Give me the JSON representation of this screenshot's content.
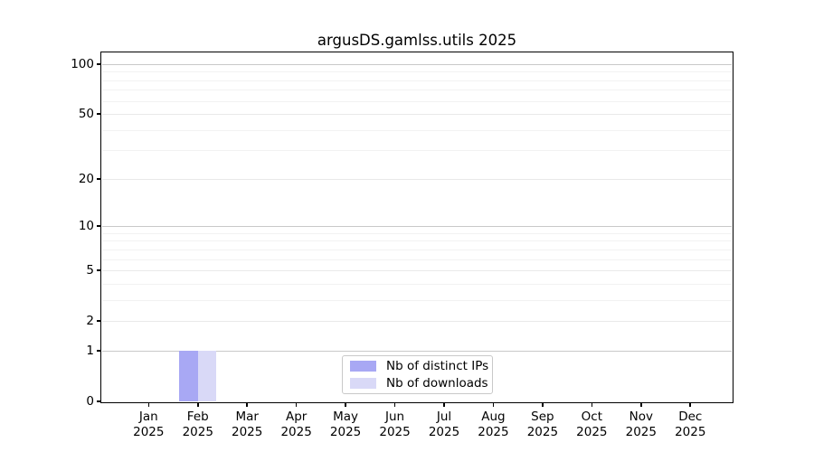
{
  "chart_data": {
    "type": "bar",
    "title": "argusDS.gamlss.utils 2025",
    "categories": [
      "Jan 2025",
      "Feb 2025",
      "Mar 2025",
      "Apr 2025",
      "May 2025",
      "Jun 2025",
      "Jul 2025",
      "Aug 2025",
      "Sep 2025",
      "Oct 2025",
      "Nov 2025",
      "Dec 2025"
    ],
    "series": [
      {
        "name": "Nb of distinct IPs",
        "color": "#a8a8f4",
        "values": [
          0,
          1,
          0,
          0,
          0,
          0,
          0,
          0,
          0,
          0,
          0,
          0
        ]
      },
      {
        "name": "Nb of downloads",
        "color": "#d9d9f7",
        "values": [
          0,
          1,
          0,
          0,
          0,
          0,
          0,
          0,
          0,
          0,
          0,
          0
        ]
      }
    ],
    "xlabel": "",
    "ylabel": "",
    "y_scale": "log10(1+x)",
    "y_ticks": [
      0,
      1,
      2,
      5,
      10,
      20,
      50,
      100
    ],
    "y_major_gridlines": [
      1,
      10,
      100
    ],
    "y_minor_gridlines": [
      3,
      4,
      6,
      7,
      8,
      9,
      30,
      40,
      60,
      70,
      80,
      90
    ],
    "ylim": [
      0,
      116
    ],
    "grid": "horizontal",
    "legend_position": "lower center"
  },
  "colors": {
    "spine": "#000000",
    "text": "#000000",
    "grid_major": "#c9c9c9",
    "grid_mid": "#e9e9e9",
    "grid_minor": "#f2f2f2",
    "legend_border": "#c9c9c9",
    "background": "#ffffff"
  }
}
